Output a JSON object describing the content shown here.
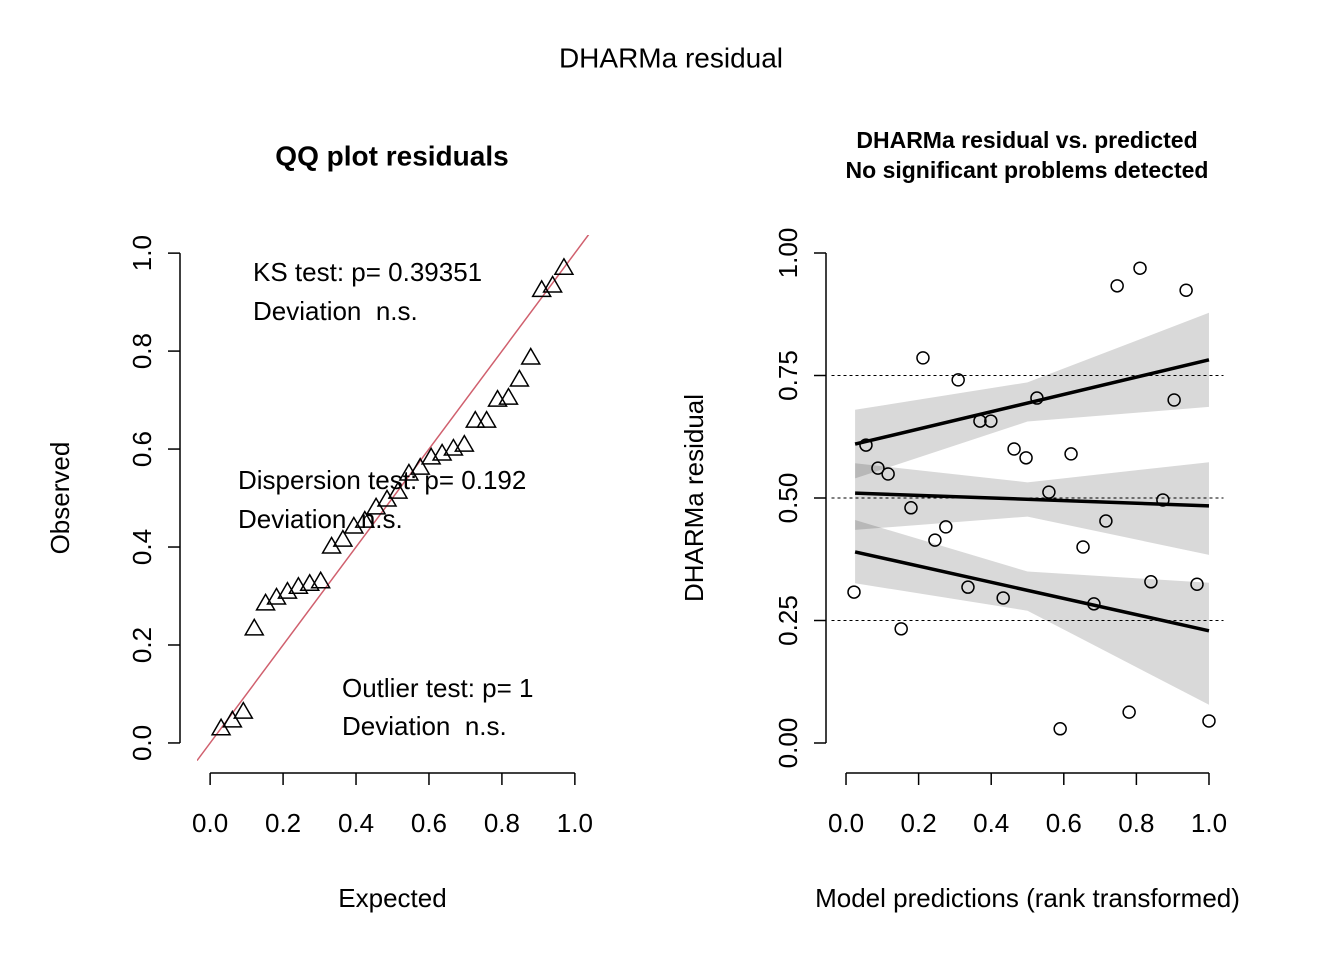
{
  "title": "DHARMa residual",
  "chart_data": [
    {
      "type": "qq",
      "title": "QQ plot residuals",
      "xlabel": "Expected",
      "ylabel": "Observed",
      "marker": "triangle",
      "color": "#000000",
      "x": [
        0.03,
        0.061,
        0.091,
        0.121,
        0.152,
        0.182,
        0.212,
        0.242,
        0.273,
        0.303,
        0.333,
        0.364,
        0.394,
        0.424,
        0.455,
        0.485,
        0.515,
        0.545,
        0.576,
        0.606,
        0.636,
        0.667,
        0.697,
        0.727,
        0.758,
        0.788,
        0.818,
        0.848,
        0.879,
        0.909,
        0.939,
        0.97
      ],
      "values": [
        0.029,
        0.045,
        0.063,
        0.233,
        0.284,
        0.296,
        0.308,
        0.318,
        0.324,
        0.329,
        0.4,
        0.414,
        0.441,
        0.453,
        0.48,
        0.496,
        0.512,
        0.549,
        0.561,
        0.582,
        0.59,
        0.6,
        0.608,
        0.657,
        0.657,
        0.7,
        0.704,
        0.741,
        0.786,
        0.924,
        0.933,
        0.969
      ],
      "reference_line": {
        "slope": 1,
        "intercept": 0,
        "color": "#d0606e"
      },
      "xlim": [
        -0.036,
        1.047
      ],
      "ylim": [
        -0.045,
        1.037
      ],
      "xticks": [
        {
          "value": 0,
          "label": "0.0"
        },
        0.2,
        0.4,
        0.6,
        0.8,
        {
          "value": 1,
          "label": "1.0"
        }
      ],
      "yticks": [
        {
          "value": 0,
          "label": "0.0"
        },
        0.2,
        0.4,
        0.6,
        0.8,
        {
          "value": 1,
          "label": "1.0"
        }
      ],
      "annotations": [
        "KS test: p= 0.39351",
        "Deviation  n.s.",
        "Dispersion test: p= 0.192",
        "Deviation  n.s.",
        "Outlier test: p= 1",
        "Deviation  n.s."
      ]
    },
    {
      "type": "scatter",
      "title": "DHARMa residual vs. predicted",
      "subtitle": "No significant problems detected",
      "xlabel": "Model predictions (rank transformed)",
      "ylabel": "DHARMa residual",
      "marker": "circle",
      "color": "#000000",
      "x": [
        0.022,
        0.055,
        0.088,
        0.116,
        0.152,
        0.179,
        0.212,
        0.245,
        0.275,
        0.309,
        0.336,
        0.369,
        0.399,
        0.433,
        0.463,
        0.496,
        0.526,
        0.559,
        0.59,
        0.62,
        0.653,
        0.683,
        0.716,
        0.747,
        0.78,
        0.81,
        0.84,
        0.873,
        0.904,
        0.937,
        0.967,
        1.0
      ],
      "values": [
        0.308,
        0.608,
        0.561,
        0.549,
        0.233,
        0.48,
        0.786,
        0.414,
        0.441,
        0.741,
        0.318,
        0.657,
        0.657,
        0.296,
        0.6,
        0.582,
        0.704,
        0.512,
        0.029,
        0.59,
        0.4,
        0.284,
        0.453,
        0.933,
        0.063,
        0.969,
        0.329,
        0.496,
        0.7,
        0.924,
        0.324,
        0.045
      ],
      "hlines": [
        0.25,
        0.5,
        0.75
      ],
      "quantile_lines": [
        {
          "x": [
            0.025,
            1.0
          ],
          "values": [
            0.61,
            0.782
          ]
        },
        {
          "x": [
            0.025,
            1.0
          ],
          "values": [
            0.51,
            0.484
          ]
        },
        {
          "x": [
            0.025,
            1.0
          ],
          "values": [
            0.39,
            0.229
          ]
        }
      ],
      "bands": [
        {
          "x": [
            0.025,
            0.5,
            1.0
          ],
          "lower": [
            0.54,
            0.656,
            0.686
          ],
          "upper": [
            0.68,
            0.736,
            0.878
          ]
        },
        {
          "x": [
            0.025,
            0.5,
            1.0
          ],
          "lower": [
            0.435,
            0.462,
            0.384
          ],
          "upper": [
            0.571,
            0.532,
            0.573
          ]
        },
        {
          "x": [
            0.025,
            0.5,
            1.0
          ],
          "lower": [
            0.326,
            0.27,
            0.078
          ],
          "upper": [
            0.455,
            0.35,
            0.327
          ]
        }
      ],
      "band_color": "#d9d9d9",
      "xlim": [
        -0.04,
        1.04
      ],
      "ylim": [
        -0.04,
        1.04
      ],
      "xticks": [
        {
          "value": 0,
          "label": "0.0"
        },
        0.2,
        0.4,
        0.6,
        0.8,
        {
          "value": 1,
          "label": "1.0"
        }
      ],
      "yticks": [
        {
          "value": 0,
          "label": "0.00"
        },
        0.25,
        {
          "value": 0.5,
          "label": "0.50"
        },
        0.75,
        {
          "value": 1,
          "label": "1.00"
        }
      ]
    }
  ]
}
